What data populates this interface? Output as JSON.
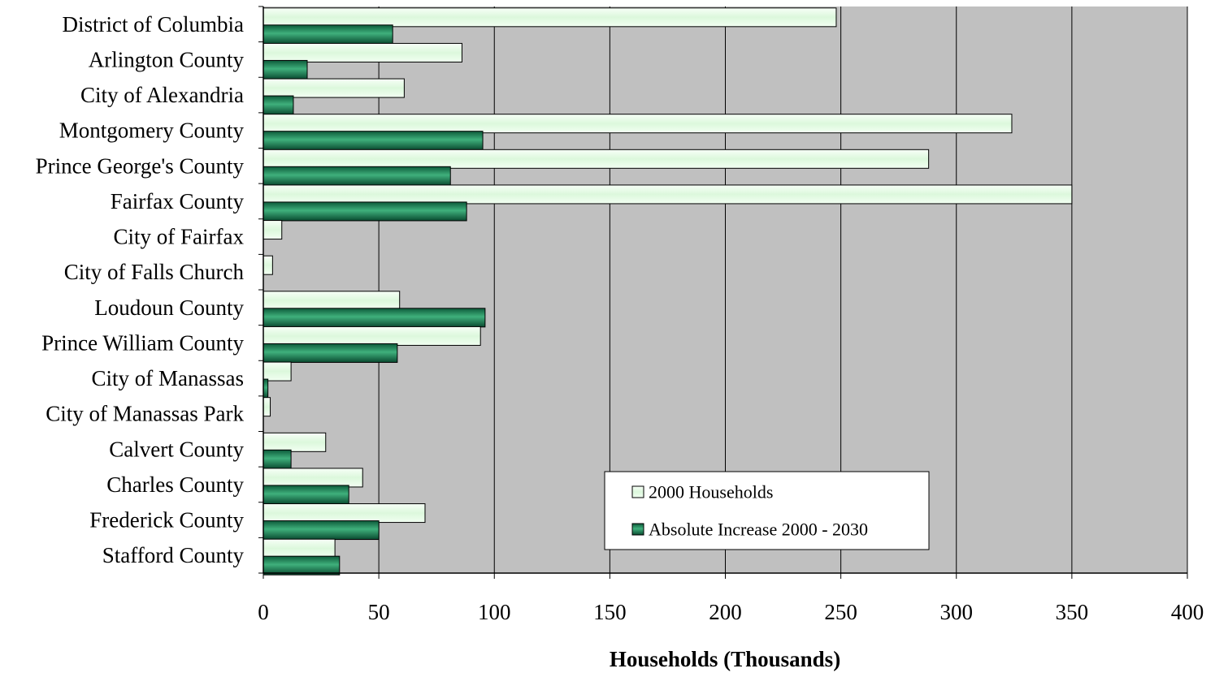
{
  "chart_data": {
    "type": "bar",
    "orientation": "horizontal",
    "title": "",
    "xlabel": "Households (Thousands)",
    "ylabel": "",
    "xlim": [
      0,
      400
    ],
    "x_ticks": [
      0,
      50,
      100,
      150,
      200,
      250,
      300,
      350,
      400
    ],
    "grid": "vertical",
    "legend_position": "lower-right",
    "background_color": "#c0c0c0",
    "categories": [
      "District of Columbia",
      "Arlington County",
      "City of Alexandria",
      "Montgomery County",
      "Prince George's County",
      "Fairfax County",
      "City of Fairfax",
      "City of Falls Church",
      "Loudoun County",
      "Prince William County",
      "City of Manassas",
      "City of Manassas Park",
      "Calvert County",
      "Charles County",
      "Frederick County",
      "Stafford County"
    ],
    "series": [
      {
        "name": "2000 Households",
        "color": "#e8ffe8",
        "values": [
          248,
          86,
          61,
          324,
          288,
          350,
          8,
          4,
          59,
          94,
          12,
          3,
          27,
          43,
          70,
          31
        ]
      },
      {
        "name": "Absolute Increase 2000 - 2030",
        "color": "#1e8a5a",
        "values": [
          56,
          19,
          13,
          95,
          81,
          88,
          0,
          0,
          96,
          58,
          2,
          0,
          12,
          37,
          50,
          33
        ]
      }
    ]
  }
}
